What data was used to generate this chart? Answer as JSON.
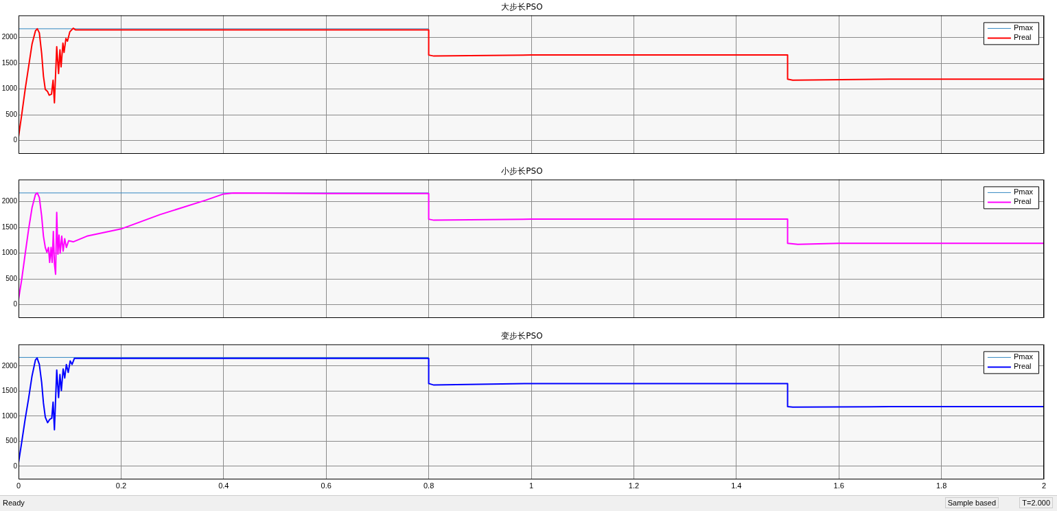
{
  "chart_data": [
    {
      "type": "line",
      "title": "大步长PSO",
      "xlim": [
        0,
        2
      ],
      "ylim": [
        -260,
        2430
      ],
      "xticks": [
        0,
        0.2,
        0.4,
        0.6,
        0.8,
        1,
        1.2,
        1.4,
        1.6,
        1.8,
        2
      ],
      "yticks": [
        0,
        500,
        1000,
        1500,
        2000
      ],
      "tick_labels": "y",
      "grid": true,
      "legend": "top right",
      "series": [
        {
          "name": "Pmax",
          "color": "#2f86c0",
          "x": [
            0,
            0.8
          ],
          "values": [
            2170,
            2170
          ]
        },
        {
          "name": "Preal",
          "color": "#ff0000",
          "x": [
            0,
            0.0062,
            0.0129,
            0.0196,
            0.0263,
            0.033,
            0.0366,
            0.0406,
            0.0451,
            0.0486,
            0.0522,
            0.0567,
            0.0598,
            0.0643,
            0.0674,
            0.07,
            0.0745,
            0.0781,
            0.0808,
            0.083,
            0.0866,
            0.0888,
            0.0924,
            0.0955,
            0.1,
            0.1067,
            0.111,
            0.3,
            0.5,
            0.7,
            0.8,
            0.8,
            0.81,
            1.0,
            1.2,
            1.4,
            1.5,
            1.5,
            1.51,
            1.7,
            2
          ],
          "values": [
            70,
            500,
            990,
            1430,
            1870,
            2130,
            2170,
            2090,
            1690,
            1250,
            990,
            950,
            880,
            900,
            1170,
            730,
            1820,
            1300,
            1760,
            1430,
            1890,
            1710,
            1980,
            1930,
            2110,
            2180,
            2150,
            2150,
            2150,
            2150,
            2150,
            1660,
            1640,
            1660,
            1660,
            1660,
            1660,
            1190,
            1170,
            1190,
            1190
          ]
        }
      ]
    },
    {
      "type": "line",
      "title": "小步长PSO",
      "xlim": [
        0,
        2
      ],
      "ylim": [
        -260,
        2430
      ],
      "xticks": [
        0,
        0.2,
        0.4,
        0.6,
        0.8,
        1,
        1.2,
        1.4,
        1.6,
        1.8,
        2
      ],
      "yticks": [
        0,
        500,
        1000,
        1500,
        2000
      ],
      "tick_labels": "y",
      "grid": true,
      "legend": "top right",
      "series": [
        {
          "name": "Pmax",
          "color": "#2f86c0",
          "x": [
            0,
            0.8
          ],
          "values": [
            2170,
            2170
          ]
        },
        {
          "name": "Preal",
          "color": "#ff00ff",
          "x": [
            0,
            0.0062,
            0.0129,
            0.0196,
            0.0263,
            0.033,
            0.0366,
            0.0406,
            0.0451,
            0.0486,
            0.0522,
            0.0553,
            0.0585,
            0.0607,
            0.0634,
            0.0656,
            0.0679,
            0.07,
            0.0723,
            0.0745,
            0.0768,
            0.079,
            0.0812,
            0.0843,
            0.087,
            0.0901,
            0.0933,
            0.0977,
            0.1067,
            0.1334,
            0.2,
            0.2762,
            0.3654,
            0.4,
            0.4191,
            0.6,
            0.8,
            0.8,
            0.81,
            1.0,
            1.2,
            1.4,
            1.5,
            1.5,
            1.52,
            1.6,
            1.8,
            2
          ],
          "values": [
            100,
            490,
            980,
            1460,
            1880,
            2140,
            2170,
            2080,
            1720,
            1330,
            1110,
            1020,
            1110,
            820,
            1110,
            820,
            1420,
            800,
            590,
            1790,
            980,
            1350,
            1000,
            1330,
            1040,
            1280,
            1110,
            1240,
            1220,
            1330,
            1470,
            1750,
            2030,
            2150,
            2170,
            2160,
            2160,
            1660,
            1640,
            1660,
            1660,
            1660,
            1660,
            1190,
            1170,
            1190,
            1190,
            1190
          ]
        }
      ]
    },
    {
      "type": "line",
      "title": "变步长PSO",
      "xlim": [
        0,
        2
      ],
      "ylim": [
        -260,
        2430
      ],
      "xticks": [
        0,
        0.2,
        0.4,
        0.6,
        0.8,
        1,
        1.2,
        1.4,
        1.6,
        1.8,
        2
      ],
      "yticks": [
        0,
        500,
        1000,
        1500,
        2000
      ],
      "grid": true,
      "legend": "top right",
      "annotations": [
        "Ready",
        "Sample based",
        "T=2.000"
      ],
      "series": [
        {
          "name": "Pmax",
          "color": "#2f86c0",
          "x": [
            0,
            0.8
          ],
          "values": [
            2170,
            2170
          ]
        },
        {
          "name": "Preal",
          "color": "#0000ff",
          "x": [
            0,
            0.0062,
            0.0129,
            0.0196,
            0.0263,
            0.033,
            0.0362,
            0.0406,
            0.0451,
            0.0486,
            0.0522,
            0.0567,
            0.0612,
            0.0648,
            0.0674,
            0.07,
            0.0745,
            0.0781,
            0.0808,
            0.0835,
            0.087,
            0.0901,
            0.0933,
            0.0969,
            0.1008,
            0.1044,
            0.1089,
            0.118,
            0.3,
            0.5,
            0.7,
            0.8,
            0.8,
            0.81,
            1.0,
            1.2,
            1.4,
            1.5,
            1.5,
            1.51,
            1.7,
            2
          ],
          "values": [
            70,
            480,
            940,
            1350,
            1800,
            2120,
            2160,
            2030,
            1670,
            1260,
            980,
            870,
            940,
            960,
            1280,
            730,
            1920,
            1370,
            1830,
            1510,
            1940,
            1760,
            2030,
            1870,
            2100,
            2030,
            2150,
            2150,
            2150,
            2150,
            2150,
            2150,
            1650,
            1620,
            1650,
            1650,
            1650,
            1650,
            1190,
            1180,
            1190,
            1190
          ]
        }
      ]
    }
  ]
}
